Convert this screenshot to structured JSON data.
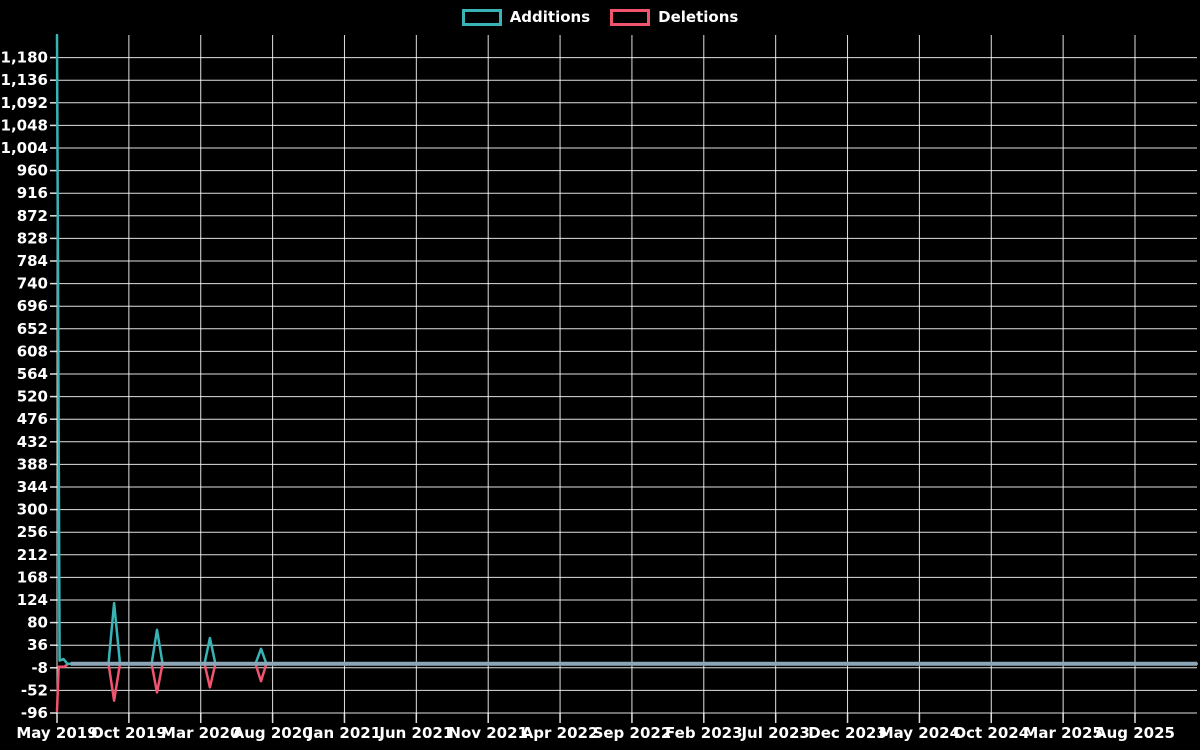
{
  "page": {
    "background": "#000000"
  },
  "legend": {
    "items": [
      {
        "label": "Additions",
        "color": "#39b4b6"
      },
      {
        "label": "Deletions",
        "color": "#f0546f"
      }
    ]
  },
  "chart_data": {
    "type": "line",
    "title": "",
    "legend_position": "top-center",
    "grid": {
      "color": "#ffffff",
      "opacity": 0.88,
      "horizontal": true,
      "vertical": true
    },
    "background": "#000000",
    "text_color": "#ffffff",
    "x_axis": {
      "unit": "months since May 2019",
      "tick_months": [
        0,
        5,
        10,
        15,
        20,
        25,
        30,
        35,
        40,
        45,
        50,
        55,
        60,
        65,
        70,
        75
      ],
      "tick_labels": [
        "May 2019",
        "Oct 2019",
        "Mar 2020",
        "Aug 2020",
        "Jan 2021",
        "Jun 2021",
        "Nov 2021",
        "Apr 2022",
        "Sep 2022",
        "Feb 2023",
        "Jul 2023",
        "Dec 2023",
        "May 2024",
        "Oct 2024",
        "Mar 2025",
        "Aug 2025"
      ],
      "range_months": [
        0,
        79.3
      ]
    },
    "y_axis": {
      "min": -96,
      "max": 1224,
      "grid_step": 44,
      "tick_values": [
        1180,
        1136,
        1092,
        1048,
        1004,
        960,
        916,
        872,
        828,
        784,
        740,
        696,
        652,
        608,
        564,
        520,
        476,
        432,
        388,
        344,
        300,
        256,
        212,
        168,
        124,
        80,
        36,
        -8,
        -52,
        -96
      ],
      "tick_labels": [
        "1,180",
        "1,136",
        "1,092",
        "1,048",
        "1,004",
        "960",
        "916",
        "872",
        "828",
        "784",
        "740",
        "696",
        "652",
        "608",
        "564",
        "520",
        "476",
        "432",
        "388",
        "344",
        "300",
        "256",
        "212",
        "168",
        "124",
        "80",
        "36",
        "-8",
        "-52",
        "-96"
      ]
    },
    "baseline": {
      "value": 0,
      "color": "#8ca6b8",
      "start_month": 0.95
    },
    "series": [
      {
        "name": "Additions",
        "color": "#39b4b6",
        "points": [
          [
            0,
            1224
          ],
          [
            0.18,
            6
          ],
          [
            0.45,
            9
          ],
          [
            0.72,
            0
          ],
          [
            3.58,
            0
          ],
          [
            3.97,
            118
          ],
          [
            4.38,
            0
          ],
          [
            6.58,
            0
          ],
          [
            6.96,
            66
          ],
          [
            7.35,
            0
          ],
          [
            10.26,
            0
          ],
          [
            10.64,
            50
          ],
          [
            11.02,
            0
          ],
          [
            13.81,
            0
          ],
          [
            14.19,
            29
          ],
          [
            14.57,
            0
          ],
          [
            79.3,
            0
          ]
        ]
      },
      {
        "name": "Deletions",
        "color": "#f0546f",
        "points": [
          [
            0,
            -92
          ],
          [
            0.12,
            -6
          ],
          [
            0.5,
            -6
          ],
          [
            0.8,
            0
          ],
          [
            3.58,
            0
          ],
          [
            3.97,
            -72
          ],
          [
            4.38,
            0
          ],
          [
            6.58,
            0
          ],
          [
            6.96,
            -56
          ],
          [
            7.35,
            0
          ],
          [
            10.26,
            0
          ],
          [
            10.64,
            -46
          ],
          [
            11.02,
            0
          ],
          [
            13.81,
            0
          ],
          [
            14.19,
            -34
          ],
          [
            14.57,
            0
          ],
          [
            79.3,
            0
          ]
        ]
      }
    ],
    "spike_events": [
      {
        "approx_date": "May 2019",
        "additions": 1224,
        "deletions": -92
      },
      {
        "approx_date": "Sep 2019",
        "additions": 118,
        "deletions": -72
      },
      {
        "approx_date": "Dec 2019",
        "additions": 66,
        "deletions": -56
      },
      {
        "approx_date": "Mar 2020",
        "additions": 50,
        "deletions": -46
      },
      {
        "approx_date": "Jul 2020",
        "additions": 29,
        "deletions": -34
      }
    ]
  }
}
